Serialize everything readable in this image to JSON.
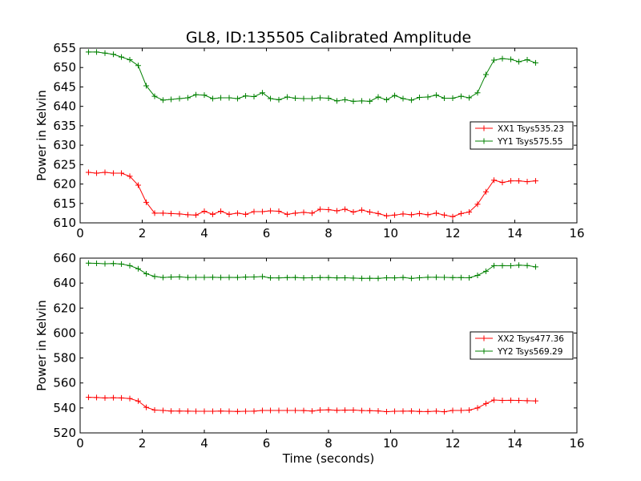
{
  "chart_data": [
    {
      "type": "line",
      "title": "GL8, ID:135505 Calibrated Amplitude",
      "xlabel": "",
      "ylabel": "Power in Kelvin",
      "xlim": [
        0,
        16
      ],
      "ylim": [
        610,
        655
      ],
      "xticks": [
        0,
        2,
        4,
        6,
        8,
        10,
        12,
        14,
        16
      ],
      "yticks": [
        610,
        615,
        620,
        625,
        630,
        635,
        640,
        645,
        650,
        655
      ],
      "grid": false,
      "legend": "center-right",
      "x": [
        0.27,
        0.53,
        0.8,
        1.07,
        1.33,
        1.6,
        1.87,
        2.13,
        2.4,
        2.67,
        2.93,
        3.2,
        3.47,
        3.73,
        4.0,
        4.27,
        4.53,
        4.8,
        5.07,
        5.33,
        5.6,
        5.87,
        6.13,
        6.4,
        6.67,
        6.93,
        7.2,
        7.47,
        7.73,
        8.0,
        8.27,
        8.53,
        8.8,
        9.07,
        9.33,
        9.6,
        9.87,
        10.13,
        10.4,
        10.67,
        10.93,
        11.2,
        11.47,
        11.73,
        12.0,
        12.27,
        12.53,
        12.8,
        13.07,
        13.33,
        13.6,
        13.87,
        14.13,
        14.4,
        14.67
      ],
      "series": [
        {
          "name": "XX1 Tsys535.23",
          "color": "#ff0000",
          "values": [
            623.0,
            622.8,
            623.0,
            622.8,
            622.8,
            622.0,
            619.7,
            615.3,
            612.5,
            612.5,
            612.4,
            612.3,
            612.1,
            612.0,
            613.0,
            612.2,
            613.0,
            612.2,
            612.5,
            612.2,
            612.9,
            612.9,
            613.1,
            613.0,
            612.2,
            612.5,
            612.7,
            612.5,
            613.5,
            613.4,
            613.1,
            613.5,
            612.8,
            613.3,
            612.8,
            612.4,
            611.8,
            612.0,
            612.3,
            612.1,
            612.4,
            612.1,
            612.5,
            612.0,
            611.6,
            612.4,
            612.8,
            614.8,
            618.0,
            621.0,
            620.4,
            620.8,
            620.8,
            620.6,
            620.8
          ]
        },
        {
          "name": "YY1 Tsys575.55",
          "color": "#008000",
          "values": [
            654.0,
            654.0,
            653.7,
            653.4,
            652.7,
            652.0,
            650.5,
            645.3,
            642.6,
            641.6,
            641.8,
            642.0,
            642.2,
            643.0,
            642.9,
            642.0,
            642.2,
            642.2,
            642.0,
            642.7,
            642.5,
            643.5,
            642.0,
            641.7,
            642.4,
            642.1,
            642.0,
            642.0,
            642.2,
            642.1,
            641.4,
            641.7,
            641.3,
            641.4,
            641.3,
            642.4,
            641.7,
            642.8,
            642.0,
            641.6,
            642.3,
            642.4,
            642.9,
            642.1,
            642.1,
            642.6,
            642.2,
            643.5,
            648.2,
            651.9,
            652.3,
            652.1,
            651.5,
            652.0,
            651.2
          ]
        }
      ]
    },
    {
      "type": "line",
      "title": "",
      "xlabel": "Time (seconds)",
      "ylabel": "Power in Kelvin",
      "xlim": [
        0,
        16
      ],
      "ylim": [
        520,
        660
      ],
      "xticks": [
        0,
        2,
        4,
        6,
        8,
        10,
        12,
        14,
        16
      ],
      "yticks": [
        520,
        540,
        560,
        580,
        600,
        620,
        640,
        660
      ],
      "grid": false,
      "legend": "center-right",
      "x": [
        0.27,
        0.53,
        0.8,
        1.07,
        1.33,
        1.6,
        1.87,
        2.13,
        2.4,
        2.67,
        2.93,
        3.2,
        3.47,
        3.73,
        4.0,
        4.27,
        4.53,
        4.8,
        5.07,
        5.33,
        5.6,
        5.87,
        6.13,
        6.4,
        6.67,
        6.93,
        7.2,
        7.47,
        7.73,
        8.0,
        8.27,
        8.53,
        8.8,
        9.07,
        9.33,
        9.6,
        9.87,
        10.13,
        10.4,
        10.67,
        10.93,
        11.2,
        11.47,
        11.73,
        12.0,
        12.27,
        12.53,
        12.8,
        13.07,
        13.33,
        13.6,
        13.87,
        14.13,
        14.4,
        14.67
      ],
      "series": [
        {
          "name": "XX2 Tsys477.36",
          "color": "#ff0000",
          "values": [
            548.5,
            548.3,
            548.0,
            548.2,
            548.0,
            547.5,
            545.5,
            540.5,
            538.3,
            538.0,
            537.5,
            537.5,
            537.4,
            537.3,
            537.3,
            537.3,
            537.5,
            537.3,
            537.2,
            537.3,
            537.4,
            538.0,
            538.0,
            538.0,
            538.0,
            538.0,
            537.9,
            537.5,
            538.3,
            538.5,
            538.1,
            538.2,
            538.3,
            537.9,
            537.8,
            537.6,
            537.0,
            537.3,
            537.4,
            537.5,
            537.2,
            537.1,
            537.4,
            536.9,
            538.0,
            538.0,
            538.2,
            540.0,
            543.5,
            546.3,
            546.0,
            546.1,
            546.0,
            545.8,
            545.6
          ]
        },
        {
          "name": "YY2 Tsys569.29",
          "color": "#008000",
          "values": [
            656.0,
            655.8,
            655.5,
            655.7,
            655.3,
            654.0,
            651.5,
            647.5,
            645.3,
            644.5,
            644.8,
            645.0,
            644.5,
            644.6,
            644.6,
            644.7,
            644.5,
            644.6,
            644.5,
            644.8,
            644.9,
            645.2,
            644.2,
            644.2,
            644.4,
            644.5,
            644.2,
            644.3,
            644.4,
            644.4,
            644.2,
            644.3,
            644.0,
            643.8,
            643.9,
            643.8,
            644.3,
            644.2,
            644.5,
            643.8,
            644.3,
            644.7,
            644.7,
            644.6,
            644.4,
            644.4,
            644.3,
            646.2,
            649.5,
            654.0,
            654.0,
            653.9,
            654.4,
            654.1,
            653.0
          ]
        }
      ]
    }
  ]
}
